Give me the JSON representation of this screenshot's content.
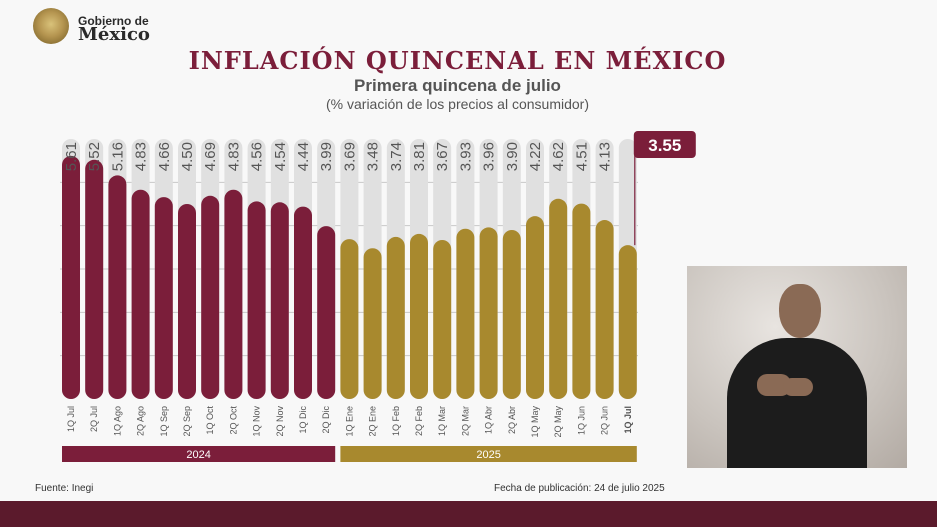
{
  "logo": {
    "line1": "Gobierno de",
    "line2": "México"
  },
  "chart_data": {
    "type": "bar",
    "title": "INFLACIÓN QUINCENAL EN MÉXICO",
    "subtitle": "Primera quincena de julio",
    "note": "(% variación de los precios al consumidor)",
    "categories": [
      "1Q Jul",
      "2Q Jul",
      "1Q Ago",
      "2Q Ago",
      "1Q Sep",
      "2Q Sep",
      "1Q Oct",
      "2Q Oct",
      "1Q Nov",
      "2Q Nov",
      "1Q Dic",
      "2Q Dic",
      "1Q Ene",
      "2Q Ene",
      "1Q Feb",
      "2Q Feb",
      "1Q Mar",
      "2Q Mar",
      "1Q Abr",
      "2Q Abr",
      "1Q May",
      "2Q May",
      "1Q Jun",
      "2Q Jun",
      "1Q Jul"
    ],
    "values": [
      5.61,
      5.52,
      5.16,
      4.83,
      4.66,
      4.5,
      4.69,
      4.83,
      4.56,
      4.54,
      4.44,
      3.99,
      3.69,
      3.48,
      3.74,
      3.81,
      3.67,
      3.93,
      3.96,
      3.9,
      4.22,
      4.62,
      4.51,
      4.13,
      3.55
    ],
    "value_labels": [
      "5.61",
      "5.52",
      "5.16",
      "4.83",
      "4.66",
      "4.50",
      "4.69",
      "4.83",
      "4.56",
      "4.54",
      "4.44",
      "3.99",
      "3.69",
      "3.48",
      "3.74",
      "3.81",
      "3.67",
      "3.93",
      "3.96",
      "3.90",
      "4.22",
      "4.62",
      "4.51",
      "4.13",
      "3.55"
    ],
    "groups": [
      {
        "label": "2024",
        "start": 0,
        "end": 11,
        "color": "#7b1e3a"
      },
      {
        "label": "2025",
        "start": 12,
        "end": 24,
        "color": "#a8892e"
      }
    ],
    "highlight_index": 24,
    "ylim": [
      0,
      6
    ],
    "grid": true,
    "colors": {
      "y2024": "#7b1e3a",
      "y2025": "#a8892e",
      "track": "#e0e0e0",
      "grid": "#c9c9c9",
      "label": "#555555"
    }
  },
  "footer": {
    "source": "Fuente: Inegi",
    "pubdate": "Fecha de publicación: 24 de julio 2025"
  }
}
